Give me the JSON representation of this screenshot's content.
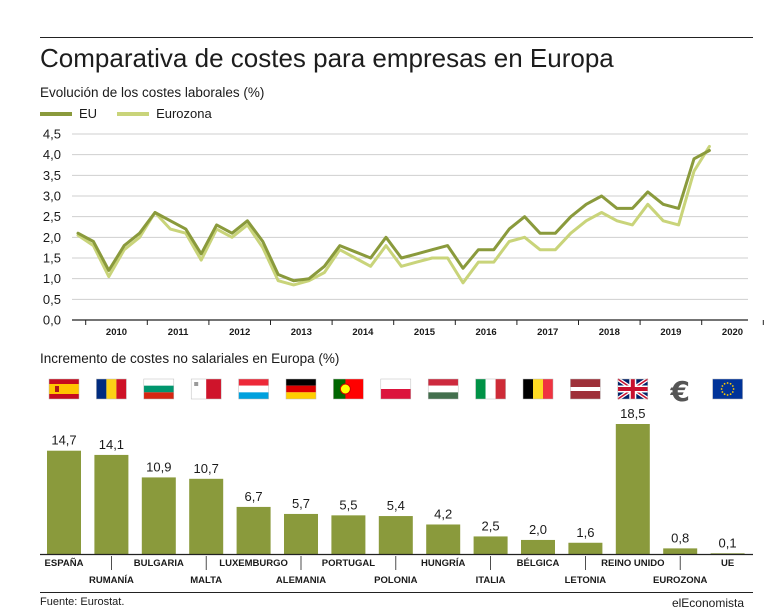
{
  "title": "Comparativa de costes para empresas en Europa",
  "source": "Fuente: Eurostat.",
  "brand": "elEconomista",
  "colors": {
    "eu": "#8a9a3c",
    "eurozona": "#c9d47a",
    "bar": "#8a9a3c",
    "grid": "#cfcfcf"
  },
  "chart_data": [
    {
      "type": "line",
      "title": "Evolución de los costes laborales (%)",
      "ylim": [
        0,
        4.5
      ],
      "yticks": [
        "0,0",
        "0,5",
        "1,0",
        "1,5",
        "2,0",
        "2,5",
        "3,0",
        "3,5",
        "4,0",
        "4,5"
      ],
      "year_labels": [
        "2010",
        "2011",
        "2012",
        "2013",
        "2014",
        "2015",
        "2016",
        "2017",
        "2018",
        "2019",
        "2020"
      ],
      "grid": true,
      "legend": "top-left",
      "x_quarter_start": "2009-Q4",
      "series": [
        {
          "name": "EU",
          "values": [
            2.1,
            1.9,
            1.2,
            1.8,
            2.1,
            2.6,
            2.4,
            2.2,
            1.6,
            2.3,
            2.1,
            2.4,
            1.9,
            1.1,
            0.95,
            1.0,
            1.3,
            1.8,
            1.65,
            1.5,
            2.0,
            1.5,
            1.6,
            1.7,
            1.8,
            1.25,
            1.7,
            1.7,
            2.2,
            2.5,
            2.1,
            2.1,
            2.5,
            2.8,
            3.0,
            2.7,
            2.7,
            3.1,
            2.8,
            2.7,
            3.9,
            4.1
          ]
        },
        {
          "name": "Eurozona",
          "values": [
            2.05,
            1.8,
            1.05,
            1.7,
            2.0,
            2.6,
            2.2,
            2.1,
            1.45,
            2.2,
            2.0,
            2.3,
            1.75,
            0.95,
            0.85,
            0.95,
            1.15,
            1.7,
            1.5,
            1.3,
            1.8,
            1.3,
            1.4,
            1.5,
            1.5,
            0.9,
            1.4,
            1.4,
            1.9,
            2.0,
            1.7,
            1.7,
            2.1,
            2.4,
            2.6,
            2.4,
            2.3,
            2.8,
            2.4,
            2.3,
            3.6,
            4.2
          ]
        }
      ]
    },
    {
      "type": "bar",
      "title": "Incremento de costes no salariales en Europa (%)",
      "ylim": [
        0,
        20
      ],
      "categories": [
        "ESPAÑA",
        "RUMANÍA",
        "BULGARIA",
        "MALTA",
        "LUXEMBURGO",
        "ALEMANIA",
        "PORTUGAL",
        "POLONIA",
        "HUNGRÍA",
        "ITALIA",
        "BÉLGICA",
        "LETONIA",
        "REINO UNIDO",
        "EUROZONA",
        "UE"
      ],
      "values": [
        14.7,
        14.1,
        10.9,
        10.7,
        6.7,
        5.7,
        5.5,
        5.4,
        4.2,
        2.5,
        2.0,
        1.6,
        18.5,
        0.8,
        0.1
      ],
      "value_labels": [
        "14,7",
        "14,1",
        "10,9",
        "10,7",
        "6,7",
        "5,7",
        "5,5",
        "5,4",
        "4,2",
        "2,5",
        "2,0",
        "1,6",
        "18,5",
        "0,8",
        "0,1"
      ],
      "flags": [
        "flag-spain",
        "flag-romania",
        "flag-bulgaria",
        "flag-malta",
        "flag-luxembourg",
        "flag-germany",
        "flag-portugal",
        "flag-poland",
        "flag-hungary",
        "flag-italy",
        "flag-belgium",
        "flag-latvia",
        "flag-uk",
        "euro-icon",
        "flag-eu"
      ]
    }
  ]
}
